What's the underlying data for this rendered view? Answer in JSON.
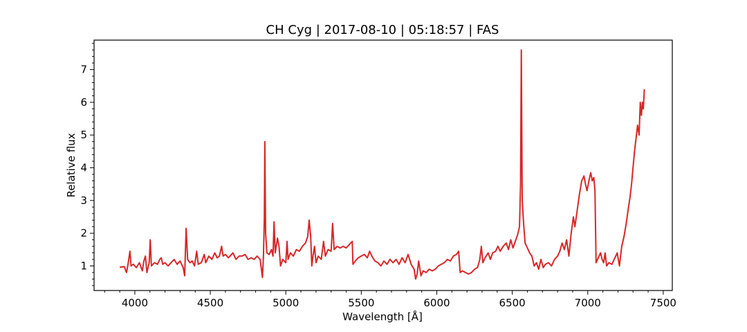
{
  "chart_data": {
    "type": "line",
    "title": "CH Cyg | 2017-08-10 | 05:18:57 | FAS",
    "xlabel": "Wavelength [Å]",
    "ylabel": "Relative flux",
    "xlim": [
      3730,
      7560
    ],
    "ylim": [
      0.25,
      7.9
    ],
    "xticks": [
      4000,
      4500,
      5000,
      5500,
      6000,
      6500,
      7000,
      7500
    ],
    "yticks": [
      1,
      2,
      3,
      4,
      5,
      6,
      7
    ],
    "grid": false,
    "legend": "none",
    "series": [
      {
        "color": "#d62728",
        "points": [
          [
            3900,
            0.96
          ],
          [
            3930,
            0.98
          ],
          [
            3945,
            0.8
          ],
          [
            3955,
            1.05
          ],
          [
            3968,
            1.45
          ],
          [
            3975,
            1.0
          ],
          [
            3990,
            1.05
          ],
          [
            4010,
            0.95
          ],
          [
            4030,
            1.1
          ],
          [
            4050,
            0.85
          ],
          [
            4060,
            1.15
          ],
          [
            4070,
            1.3
          ],
          [
            4080,
            0.8
          ],
          [
            4095,
            1.1
          ],
          [
            4102,
            1.8
          ],
          [
            4110,
            1.0
          ],
          [
            4130,
            1.1
          ],
          [
            4150,
            1.05
          ],
          [
            4165,
            1.2
          ],
          [
            4175,
            1.25
          ],
          [
            4185,
            1.05
          ],
          [
            4200,
            1.1
          ],
          [
            4220,
            1.0
          ],
          [
            4240,
            1.1
          ],
          [
            4260,
            1.2
          ],
          [
            4280,
            1.05
          ],
          [
            4300,
            1.15
          ],
          [
            4320,
            0.95
          ],
          [
            4330,
            0.7
          ],
          [
            4340,
            2.15
          ],
          [
            4350,
            1.2
          ],
          [
            4365,
            1.1
          ],
          [
            4380,
            1.15
          ],
          [
            4395,
            1.0
          ],
          [
            4410,
            1.45
          ],
          [
            4420,
            1.05
          ],
          [
            4440,
            1.1
          ],
          [
            4460,
            1.35
          ],
          [
            4470,
            1.1
          ],
          [
            4490,
            1.3
          ],
          [
            4510,
            1.2
          ],
          [
            4530,
            1.4
          ],
          [
            4545,
            1.25
          ],
          [
            4560,
            1.3
          ],
          [
            4575,
            1.6
          ],
          [
            4585,
            1.3
          ],
          [
            4600,
            1.35
          ],
          [
            4620,
            1.25
          ],
          [
            4650,
            1.4
          ],
          [
            4670,
            1.2
          ],
          [
            4690,
            1.3
          ],
          [
            4710,
            1.3
          ],
          [
            4730,
            1.35
          ],
          [
            4750,
            1.2
          ],
          [
            4770,
            1.25
          ],
          [
            4790,
            1.2
          ],
          [
            4810,
            1.3
          ],
          [
            4830,
            1.2
          ],
          [
            4845,
            0.65
          ],
          [
            4852,
            1.3
          ],
          [
            4858,
            2.5
          ],
          [
            4861,
            4.8
          ],
          [
            4866,
            2.0
          ],
          [
            4875,
            1.4
          ],
          [
            4890,
            1.35
          ],
          [
            4905,
            1.5
          ],
          [
            4915,
            1.3
          ],
          [
            4922,
            2.35
          ],
          [
            4930,
            1.4
          ],
          [
            4945,
            1.85
          ],
          [
            4955,
            1.6
          ],
          [
            4965,
            1.0
          ],
          [
            4980,
            1.2
          ],
          [
            5000,
            1.1
          ],
          [
            5008,
            1.75
          ],
          [
            5015,
            1.2
          ],
          [
            5030,
            1.4
          ],
          [
            5050,
            1.3
          ],
          [
            5070,
            1.5
          ],
          [
            5090,
            1.45
          ],
          [
            5110,
            1.6
          ],
          [
            5130,
            1.7
          ],
          [
            5145,
            1.9
          ],
          [
            5155,
            2.4
          ],
          [
            5165,
            1.9
          ],
          [
            5172,
            1.0
          ],
          [
            5180,
            1.3
          ],
          [
            5190,
            1.6
          ],
          [
            5200,
            1.1
          ],
          [
            5215,
            1.3
          ],
          [
            5235,
            1.2
          ],
          [
            5250,
            1.75
          ],
          [
            5262,
            1.3
          ],
          [
            5280,
            1.5
          ],
          [
            5300,
            1.45
          ],
          [
            5310,
            2.3
          ],
          [
            5320,
            1.5
          ],
          [
            5340,
            1.6
          ],
          [
            5360,
            1.55
          ],
          [
            5380,
            1.6
          ],
          [
            5400,
            1.55
          ],
          [
            5420,
            1.65
          ],
          [
            5440,
            1.75
          ],
          [
            5445,
            1.05
          ],
          [
            5460,
            1.15
          ],
          [
            5480,
            1.25
          ],
          [
            5500,
            1.3
          ],
          [
            5520,
            1.35
          ],
          [
            5540,
            1.25
          ],
          [
            5555,
            1.45
          ],
          [
            5570,
            1.3
          ],
          [
            5590,
            1.15
          ],
          [
            5610,
            1.1
          ],
          [
            5630,
            1.0
          ],
          [
            5650,
            1.15
          ],
          [
            5670,
            1.05
          ],
          [
            5690,
            1.2
          ],
          [
            5710,
            1.1
          ],
          [
            5730,
            1.2
          ],
          [
            5750,
            1.05
          ],
          [
            5770,
            1.25
          ],
          [
            5790,
            1.1
          ],
          [
            5810,
            1.35
          ],
          [
            5830,
            1.05
          ],
          [
            5850,
            0.9
          ],
          [
            5860,
            0.6
          ],
          [
            5870,
            0.75
          ],
          [
            5880,
            1.15
          ],
          [
            5895,
            0.7
          ],
          [
            5910,
            0.85
          ],
          [
            5930,
            0.8
          ],
          [
            5950,
            0.9
          ],
          [
            5970,
            0.85
          ],
          [
            5990,
            0.9
          ],
          [
            6010,
            1.0
          ],
          [
            6030,
            1.05
          ],
          [
            6050,
            1.1
          ],
          [
            6070,
            1.2
          ],
          [
            6090,
            1.15
          ],
          [
            6110,
            1.3
          ],
          [
            6130,
            1.35
          ],
          [
            6145,
            1.45
          ],
          [
            6155,
            0.8
          ],
          [
            6170,
            0.85
          ],
          [
            6190,
            0.8
          ],
          [
            6210,
            0.75
          ],
          [
            6230,
            0.8
          ],
          [
            6250,
            0.9
          ],
          [
            6270,
            0.95
          ],
          [
            6285,
            1.2
          ],
          [
            6295,
            1.6
          ],
          [
            6305,
            1.1
          ],
          [
            6320,
            1.25
          ],
          [
            6340,
            1.4
          ],
          [
            6355,
            1.2
          ],
          [
            6370,
            1.4
          ],
          [
            6390,
            1.45
          ],
          [
            6405,
            1.6
          ],
          [
            6420,
            1.45
          ],
          [
            6440,
            1.6
          ],
          [
            6460,
            1.7
          ],
          [
            6475,
            1.5
          ],
          [
            6490,
            1.8
          ],
          [
            6505,
            1.55
          ],
          [
            6520,
            1.75
          ],
          [
            6535,
            1.95
          ],
          [
            6548,
            2.2
          ],
          [
            6555,
            3.5
          ],
          [
            6560,
            7.6
          ],
          [
            6566,
            3.0
          ],
          [
            6575,
            2.3
          ],
          [
            6585,
            1.7
          ],
          [
            6600,
            1.55
          ],
          [
            6615,
            1.4
          ],
          [
            6630,
            1.3
          ],
          [
            6645,
            1.0
          ],
          [
            6660,
            1.1
          ],
          [
            6675,
            0.9
          ],
          [
            6690,
            1.2
          ],
          [
            6705,
            0.95
          ],
          [
            6720,
            1.05
          ],
          [
            6740,
            1.1
          ],
          [
            6760,
            1.0
          ],
          [
            6780,
            1.2
          ],
          [
            6800,
            1.3
          ],
          [
            6815,
            1.45
          ],
          [
            6830,
            1.7
          ],
          [
            6845,
            1.5
          ],
          [
            6860,
            1.8
          ],
          [
            6875,
            1.3
          ],
          [
            6890,
            2.0
          ],
          [
            6905,
            2.5
          ],
          [
            6915,
            2.2
          ],
          [
            6930,
            2.7
          ],
          [
            6945,
            3.2
          ],
          [
            6960,
            3.6
          ],
          [
            6975,
            3.75
          ],
          [
            6985,
            3.5
          ],
          [
            6995,
            3.3
          ],
          [
            7010,
            3.65
          ],
          [
            7020,
            3.85
          ],
          [
            7030,
            3.6
          ],
          [
            7040,
            3.7
          ],
          [
            7048,
            3.3
          ],
          [
            7055,
            1.1
          ],
          [
            7070,
            1.25
          ],
          [
            7085,
            1.4
          ],
          [
            7095,
            1.2
          ],
          [
            7105,
            1.1
          ],
          [
            7115,
            1.4
          ],
          [
            7125,
            1.0
          ],
          [
            7140,
            1.1
          ],
          [
            7160,
            1.05
          ],
          [
            7180,
            1.25
          ],
          [
            7195,
            1.4
          ],
          [
            7210,
            1.0
          ],
          [
            7225,
            1.6
          ],
          [
            7240,
            1.9
          ],
          [
            7255,
            2.3
          ],
          [
            7270,
            2.8
          ],
          [
            7280,
            3.1
          ],
          [
            7290,
            3.5
          ],
          [
            7300,
            4.0
          ],
          [
            7310,
            4.5
          ],
          [
            7320,
            4.9
          ],
          [
            7330,
            5.3
          ],
          [
            7340,
            5.0
          ],
          [
            7348,
            6.0
          ],
          [
            7355,
            5.6
          ],
          [
            7362,
            6.0
          ],
          [
            7368,
            5.8
          ],
          [
            7375,
            6.4
          ]
        ]
      }
    ]
  }
}
